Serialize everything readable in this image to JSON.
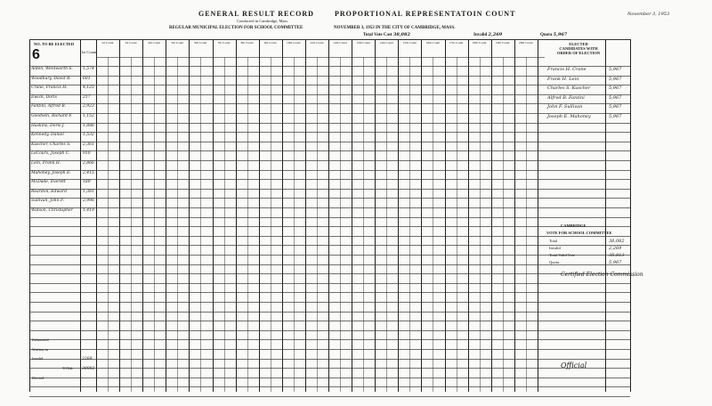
{
  "header": {
    "title_left": "GENERAL RESULT RECORD",
    "title_right": "PROPORTIONAL REPRESENTATOIN COUNT",
    "subtitle_small": "Conducted in Cambridge, Mass.",
    "election": "REGULAR MUNICIPAL ELECTION FOR SCHOOL COMMITTEE",
    "date_city": "NOVEMBER 3, 1953 IN THE CITY OF CAMBRIDGE, MASS.",
    "total_vote_label": "Total Vote Cast",
    "total_vote": "38,082",
    "invalid_label": "Invalid",
    "invalid": "2,269",
    "quota_label": "Quota",
    "quota": "5,967",
    "date_handwritten": "November 3, 1953"
  },
  "table": {
    "to_be_elected_label": "NO. TO BE ELECTED",
    "to_be_elected": "6",
    "first_count_label": "1st Count",
    "count_headers": [
      "2d Count",
      "3d Count",
      "4th Count",
      "5th Count",
      "6th Count",
      "7th Count",
      "8th Count",
      "9th Count",
      "10th Count",
      "11th Count",
      "12th Count",
      "13th Count",
      "14th Count",
      "15th Count",
      "16th Count",
      "17th Count",
      "18th Count",
      "19th Count",
      "20th Count"
    ],
    "candidates": [
      {
        "name": "Alden, Wentworth S.",
        "first": "1,574"
      },
      {
        "name": "Woodbury, David B.",
        "first": "601"
      },
      {
        "name": "Crane, Francis H.",
        "first": "4,125"
      },
      {
        "name": "Ewick, Doris",
        "first": "217"
      },
      {
        "name": "Fantini, Alfred B.",
        "first": "2,923"
      },
      {
        "name": "Goodwin, Richard F.",
        "first": "1,152"
      },
      {
        "name": "Haskins, Doris J.",
        "first": "1,886"
      },
      {
        "name": "Kennedy, Daniel",
        "first": "1,532"
      },
      {
        "name": "Kuscher, Charles S.",
        "first": "2,361"
      },
      {
        "name": "LeCours, Joseph C.",
        "first": "910"
      },
      {
        "name": "Lein, Frank H.",
        "first": "2,866"
      },
      {
        "name": "Mahoney, Joseph E.",
        "first": "2,415"
      },
      {
        "name": "McDade, Everett",
        "first": "189"
      },
      {
        "name": "Reardon, Edward",
        "first": "1,381"
      },
      {
        "name": "Sullivan, John F.",
        "first": "2,996"
      },
      {
        "name": "Watson, Christopher",
        "first": "1,419"
      }
    ],
    "footer_rows": {
      "exhausted": "Exhausted",
      "written_in": "Written in",
      "invalid": "Invalid",
      "total": "TOTAL",
      "elected": "Elected"
    },
    "footer_values": {
      "invalid": "2269",
      "total": "38082"
    }
  },
  "elected_panel": {
    "heading": "ELECTED CANDIDATES WITH ORDER OF ELECTION",
    "elected": [
      {
        "name": "Francis H. Crane",
        "votes": "5,967"
      },
      {
        "name": "Frank H. Lein",
        "votes": "5,967"
      },
      {
        "name": "Charles S. Kuscher",
        "votes": "5,967"
      },
      {
        "name": "Alfred B. Fantini",
        "votes": "5,967"
      },
      {
        "name": "John F. Sullivan",
        "votes": "5,967"
      },
      {
        "name": "Joseph E. Mahoney",
        "votes": "5,967"
      }
    ],
    "summary_heading": "CAMBRIDGE",
    "summary_title": "VOTE FOR SCHOOL COMMITTEE",
    "summary": [
      {
        "label": "Total",
        "value": "38,082"
      },
      {
        "label": "Invalid",
        "value": "2,269"
      },
      {
        "label": "Total Valid Vote",
        "value": "35,813"
      },
      {
        "label": "Quota",
        "value": "5,967"
      }
    ],
    "certified_signature": "Certified Election Commission",
    "official": "Official"
  }
}
